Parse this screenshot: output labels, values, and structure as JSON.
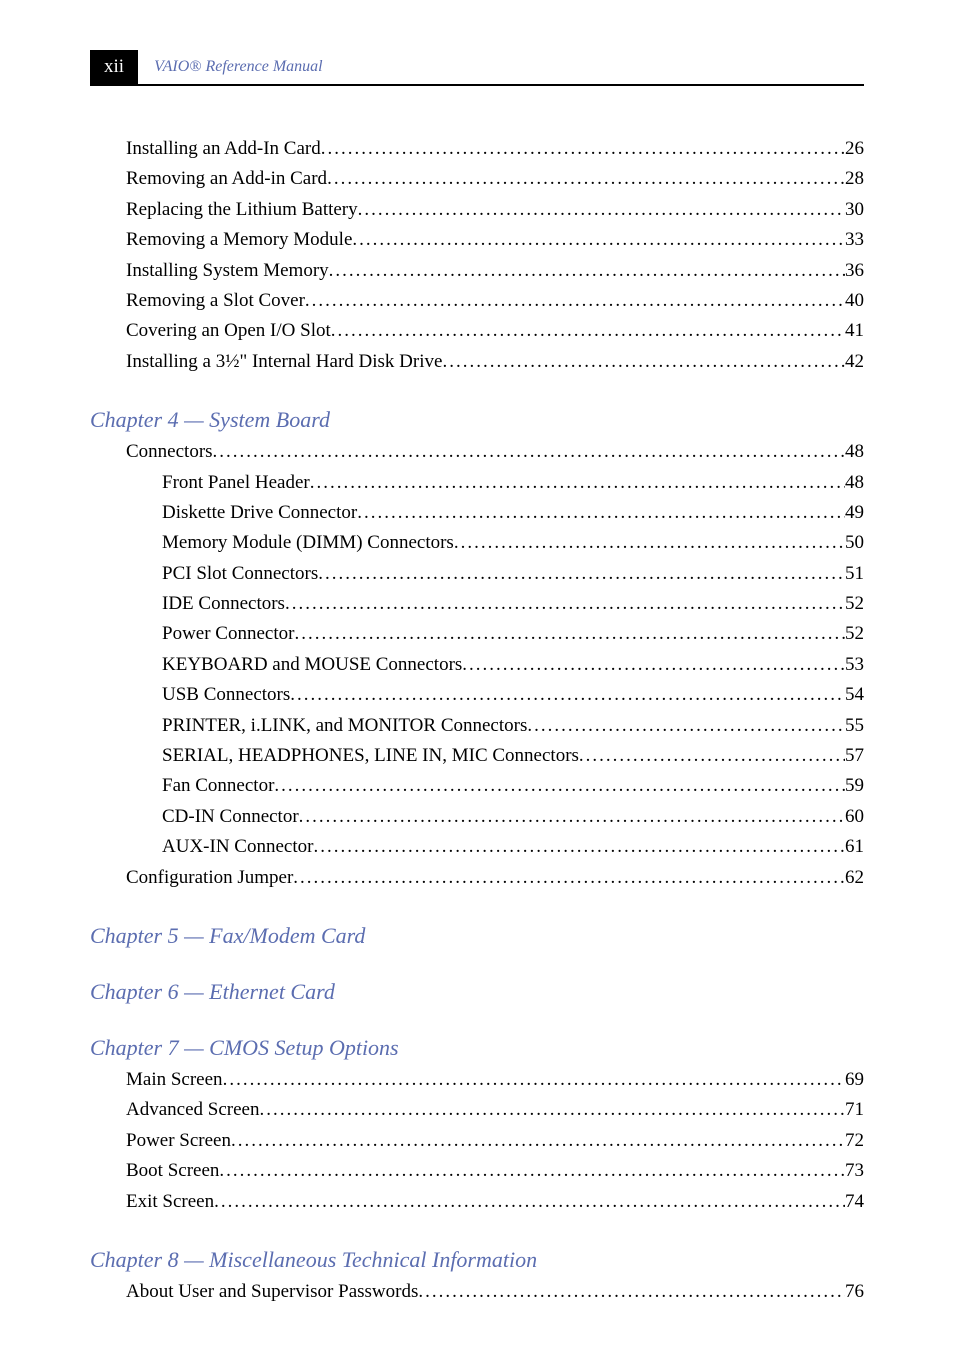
{
  "header": {
    "page_roman": "xii",
    "title": "VAIO® Reference Manual"
  },
  "colors": {
    "accent": "#5b6db0",
    "text": "#000000",
    "header_bg": "#000000",
    "header_fg": "#ffffff",
    "page_bg": "#ffffff"
  },
  "typography": {
    "body_font": "Palatino Linotype, Book Antiqua, Palatino, serif",
    "body_size_pt": 14,
    "heading_size_pt": 16,
    "header_title_size_pt": 12
  },
  "sections": [
    {
      "heading": null,
      "entries": [
        {
          "label": "Installing an Add-In Card",
          "page": "26",
          "level": 1
        },
        {
          "label": "Removing an Add-in Card",
          "page": "28",
          "level": 1
        },
        {
          "label": "Replacing the Lithium Battery",
          "page": "30",
          "level": 1
        },
        {
          "label": "Removing a Memory Module",
          "page": "33",
          "level": 1
        },
        {
          "label": "Installing System Memory",
          "page": "36",
          "level": 1
        },
        {
          "label": "Removing a Slot Cover",
          "page": "40",
          "level": 1
        },
        {
          "label": "Covering an Open I/O Slot",
          "page": "41",
          "level": 1
        },
        {
          "label": "Installing a 3½\" Internal Hard Disk Drive",
          "page": "42",
          "level": 1
        }
      ]
    },
    {
      "heading": "Chapter 4 — System Board",
      "entries": [
        {
          "label": "Connectors",
          "page": "48",
          "level": 1
        },
        {
          "label": "Front Panel Header",
          "page": "48",
          "level": 2
        },
        {
          "label": "Diskette Drive Connector",
          "page": "49",
          "level": 2
        },
        {
          "label": "Memory Module (DIMM) Connectors",
          "page": "50",
          "level": 2
        },
        {
          "label": "PCI Slot Connectors",
          "page": "51",
          "level": 2
        },
        {
          "label": "IDE Connectors",
          "page": "52",
          "level": 2
        },
        {
          "label": "Power Connector",
          "page": "52",
          "level": 2
        },
        {
          "label": "KEYBOARD and MOUSE Connectors",
          "page": "53",
          "level": 2
        },
        {
          "label": "USB Connectors",
          "page": "54",
          "level": 2
        },
        {
          "label": "PRINTER, i.LINK, and MONITOR Connectors",
          "page": "55",
          "level": 2
        },
        {
          "label": "SERIAL, HEADPHONES, LINE IN, MIC Connectors",
          "page": "57",
          "level": 2
        },
        {
          "label": "Fan Connector",
          "page": "59",
          "level": 2
        },
        {
          "label": "CD-IN Connector",
          "page": "60",
          "level": 2
        },
        {
          "label": "AUX-IN Connector",
          "page": "61",
          "level": 2
        },
        {
          "label": "Configuration Jumper",
          "page": "62",
          "level": 1
        }
      ]
    },
    {
      "heading": "Chapter 5 — Fax/Modem Card",
      "entries": []
    },
    {
      "heading": "Chapter 6 — Ethernet Card",
      "entries": []
    },
    {
      "heading": "Chapter 7 — CMOS Setup Options",
      "entries": [
        {
          "label": "Main Screen",
          "page": "69",
          "level": 1
        },
        {
          "label": "Advanced Screen",
          "page": "71",
          "level": 1
        },
        {
          "label": "Power Screen",
          "page": "72",
          "level": 1
        },
        {
          "label": "Boot Screen",
          "page": "73",
          "level": 1
        },
        {
          "label": "Exit Screen",
          "page": "74",
          "level": 1
        }
      ]
    },
    {
      "heading": "Chapter 8 — Miscellaneous Technical Information",
      "entries": [
        {
          "label": "About User and Supervisor Passwords",
          "page": "76",
          "level": 1
        }
      ]
    }
  ]
}
